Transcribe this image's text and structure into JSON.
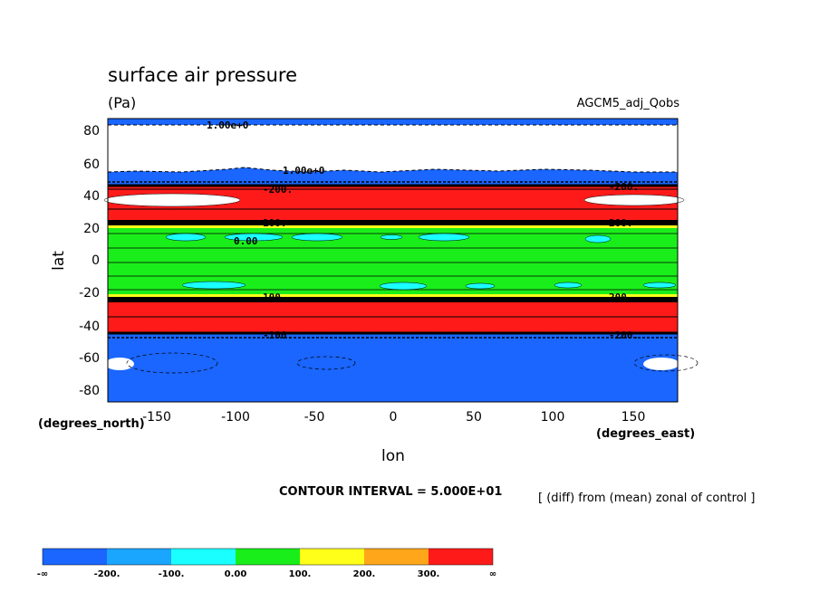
{
  "chart_data": {
    "type": "heatmap",
    "title": "surface air pressure",
    "units": "(Pa)",
    "experiment": "AGCM5_adj_Qobs",
    "xlabel": "lon",
    "ylabel": "lat",
    "x_units_label": "(degrees_east)",
    "y_units_label": "(degrees_north)",
    "xlim": [
      -180,
      180
    ],
    "ylim": [
      -90,
      87
    ],
    "x_ticks": [
      -150,
      -100,
      -50,
      0,
      50,
      100,
      150
    ],
    "y_ticks": [
      80,
      60,
      40,
      20,
      0,
      -20,
      -40,
      -60,
      -80
    ],
    "contour_interval": "CONTOUR INTERVAL = 5.000E+01",
    "diff_note": "[ (diff) from (mean) zonal of control ]",
    "colorbar": {
      "labels": [
        "-∞",
        "-200.",
        "-100.",
        "0.00",
        "100.",
        "200.",
        "300.",
        "∞"
      ],
      "colors": [
        "#1a66ff",
        "#1aa6ff",
        "#1affff",
        "#1aee1a",
        "#ffff1a",
        "#ffa61a",
        "#ff1a1a"
      ]
    },
    "bands": [
      {
        "lat_from": 87,
        "lat_to": 83,
        "level": "<-200",
        "color": "#1a66ff"
      },
      {
        "lat_from": 83,
        "lat_to": 54,
        "level": "no data / >inf",
        "color": "#ffffff"
      },
      {
        "lat_from": 54,
        "lat_to": 48,
        "level": "<-200",
        "color": "#1a66ff"
      },
      {
        "lat_from": 48,
        "lat_to": 23,
        "level": ">300",
        "color": "#ff1a1a"
      },
      {
        "lat_from": 23,
        "lat_to": -23,
        "level": "0 to 100",
        "color": "#1aee1a"
      },
      {
        "lat_from": -23,
        "lat_to": -47,
        "level": ">300",
        "color": "#ff1a1a"
      },
      {
        "lat_from": -47,
        "lat_to": -90,
        "level": "<-200",
        "color": "#1a66ff"
      }
    ],
    "contour_labels": [
      "1.00e+0",
      "1.00e+0",
      "0.00",
      "-200.",
      "-100.",
      "100.",
      "200.",
      "300."
    ]
  }
}
